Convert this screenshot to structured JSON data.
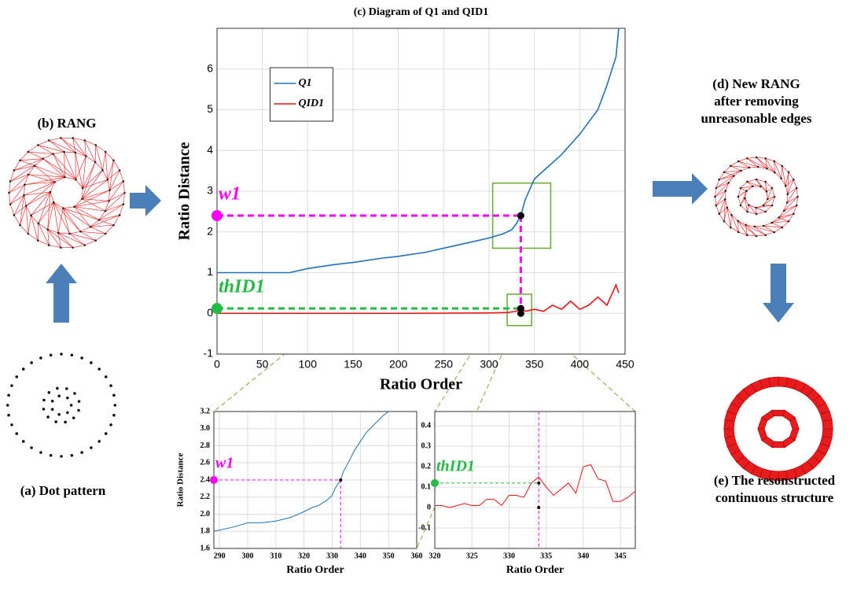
{
  "chart_data": [
    {
      "type": "line",
      "title": "(c) Diagram of Q1 and QID1",
      "xlabel": "Ratio Order",
      "ylabel": "Ratio Distance",
      "xlim": [
        0,
        450
      ],
      "xticks": [
        0,
        50,
        100,
        150,
        200,
        250,
        300,
        350,
        400,
        450
      ],
      "ylim": [
        -1,
        7
      ],
      "yticks": [
        -1,
        0,
        1,
        2,
        3,
        4,
        5,
        6
      ],
      "grid": true,
      "legend": "upper left",
      "series": [
        {
          "name": "Q1",
          "color": "#1f72b8",
          "x": [
            0,
            40,
            80,
            100,
            130,
            150,
            180,
            200,
            230,
            250,
            280,
            300,
            315,
            325,
            330,
            335,
            340,
            345,
            350,
            360,
            380,
            400,
            420,
            430,
            440,
            443
          ],
          "values": [
            1,
            1,
            1,
            1.1,
            1.2,
            1.25,
            1.35,
            1.4,
            1.5,
            1.6,
            1.75,
            1.85,
            1.95,
            2.05,
            2.2,
            2.4,
            2.8,
            3.05,
            3.3,
            3.5,
            3.9,
            4.4,
            5,
            5.6,
            6.3,
            7
          ]
        },
        {
          "name": "QID1",
          "color": "#ee1111",
          "x": [
            0,
            100,
            200,
            300,
            320,
            330,
            334,
            340,
            350,
            360,
            370,
            380,
            390,
            400,
            410,
            420,
            430,
            440,
            443
          ],
          "values": [
            0,
            0,
            0,
            0.01,
            0.02,
            0.05,
            0.15,
            0.05,
            0.1,
            0.05,
            0.2,
            0.1,
            0.3,
            0.1,
            0.2,
            0.4,
            0.2,
            0.7,
            0.5
          ]
        }
      ],
      "points": {
        "x": [
          335,
          335,
          335
        ],
        "y": [
          2.4,
          0.12,
          0
        ]
      },
      "annotations": [
        {
          "text": "w1",
          "x": 335,
          "y": 2.4,
          "color": "#ff00ff",
          "vline": true
        },
        {
          "text": "thID1",
          "x": 335,
          "y": 0.12,
          "color": "#22bb44"
        }
      ]
    },
    {
      "type": "line",
      "xlabel": "Ratio Order",
      "ylabel": "Ratio Distance",
      "xlim": [
        288,
        360
      ],
      "xticks": [
        290,
        300,
        310,
        320,
        330,
        340,
        350,
        360
      ],
      "ylim": [
        1.6,
        3.2
      ],
      "yticks": [
        1.6,
        1.8,
        {
          "value": 2,
          "label": "2.0"
        },
        2.2,
        2.4,
        2.6,
        2.8,
        {
          "value": 3,
          "label": "3.0"
        },
        3.2
      ],
      "grid": true,
      "series": [
        {
          "color": "#1f72b8",
          "x": [
            288,
            295,
            300,
            305,
            310,
            315,
            318,
            320,
            323,
            325,
            328,
            330,
            331,
            332,
            333,
            334,
            336,
            338,
            340,
            342,
            345,
            348,
            350
          ],
          "values": [
            1.8,
            1.85,
            1.9,
            1.9,
            1.92,
            1.96,
            2,
            2.03,
            2.08,
            2.1,
            2.16,
            2.22,
            2.3,
            2.35,
            2.4,
            2.5,
            2.62,
            2.75,
            2.85,
            2.95,
            3.05,
            3.15,
            3.2
          ]
        }
      ],
      "points": {
        "x": [
          333
        ],
        "y": [
          2.4
        ]
      },
      "annotations": [
        {
          "text": "w1",
          "x": 333,
          "y": 2.4,
          "color": "#ff00ff",
          "vline": true
        }
      ]
    },
    {
      "type": "line",
      "xlabel": "Ratio Order",
      "xlim": [
        320,
        347
      ],
      "xticks": [
        320,
        325,
        330,
        335,
        340,
        345
      ],
      "ylim": [
        -0.2,
        0.47
      ],
      "yticks": [
        -0.1,
        0,
        0.1,
        0.2,
        0.3,
        0.4
      ],
      "grid": true,
      "series": [
        {
          "color": "#ee1111",
          "x": [
            320,
            321,
            322,
            323,
            324,
            325,
            326,
            327,
            328,
            329,
            330,
            331,
            332,
            333,
            334,
            335,
            336,
            337,
            338,
            339,
            340,
            341,
            342,
            343,
            344,
            345,
            346,
            347
          ],
          "values": [
            0.01,
            0.01,
            0,
            0.01,
            0.02,
            0.01,
            0.01,
            0.04,
            0.04,
            0.01,
            0.06,
            0.06,
            0.05,
            0.12,
            0.15,
            0.1,
            0.06,
            0.09,
            0.12,
            0.07,
            0.2,
            0.21,
            0.14,
            0.13,
            0.03,
            0.03,
            0.05,
            0.08
          ]
        }
      ],
      "points": {
        "x": [
          334,
          334
        ],
        "y": [
          0.12,
          0
        ]
      },
      "vline": {
        "x": 334,
        "color": "#ff00ff"
      },
      "annotations": [
        {
          "text": "thID1",
          "x": 334,
          "y": 0.12,
          "color": "#22bb44"
        }
      ]
    }
  ],
  "panels": {
    "b": "(b) RANG",
    "a": "(a) Dot pattern",
    "d": [
      "(d) New RANG",
      "after removing",
      "unreasonable edges"
    ],
    "e": [
      "(e) The resonstructed",
      "continuous structure"
    ]
  }
}
